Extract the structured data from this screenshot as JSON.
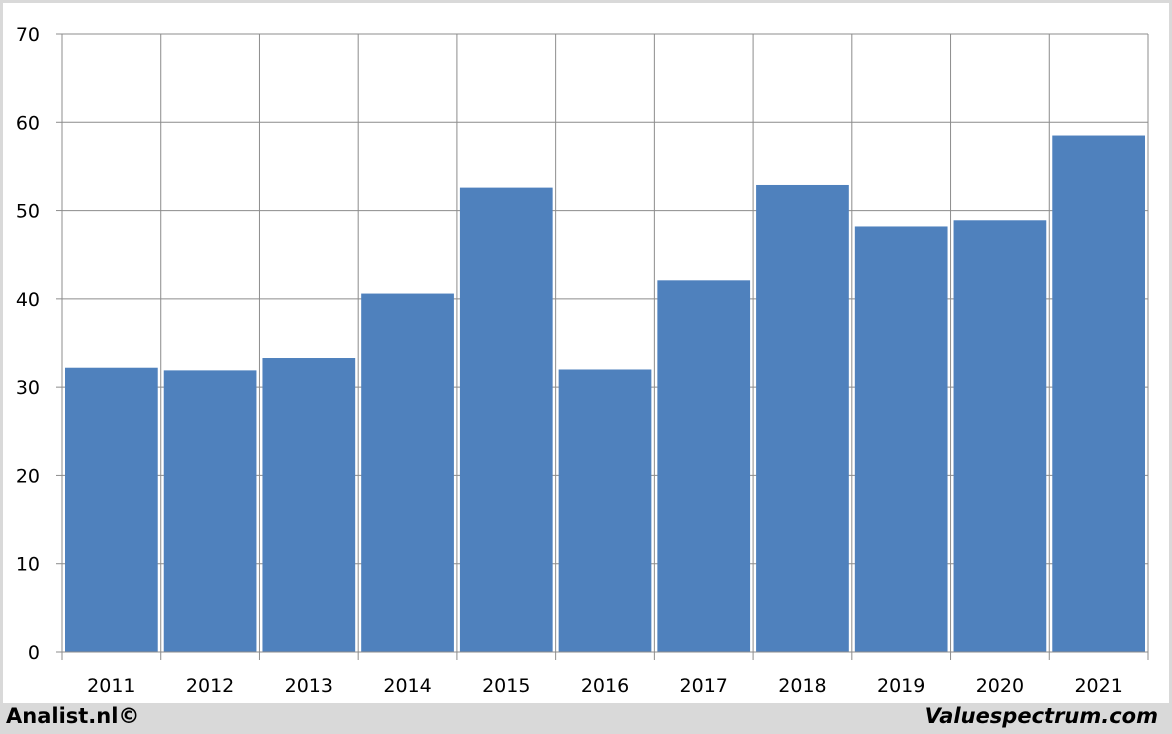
{
  "chart_data": {
    "type": "bar",
    "categories": [
      "2011",
      "2012",
      "2013",
      "2014",
      "2015",
      "2016",
      "2017",
      "2018",
      "2019",
      "2020",
      "2021"
    ],
    "values": [
      32.2,
      31.9,
      33.3,
      40.6,
      52.6,
      32.0,
      42.1,
      52.9,
      48.2,
      48.9,
      58.5
    ],
    "ylim": [
      0,
      70
    ],
    "yticks": [
      0,
      10,
      20,
      30,
      40,
      50,
      60,
      70
    ],
    "title": "",
    "xlabel": "",
    "ylabel": "",
    "grid": true,
    "bar_color": "#4f81bd"
  },
  "footer": {
    "left": "Analist.nl©",
    "right": "Valuespectrum.com"
  }
}
